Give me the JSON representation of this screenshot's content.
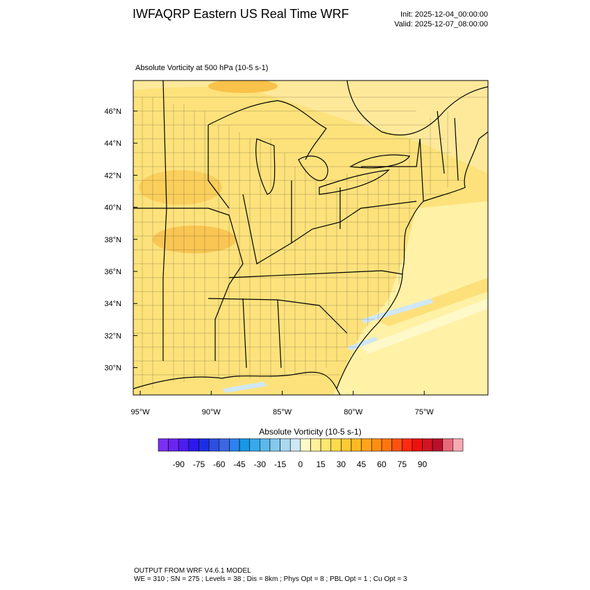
{
  "header": {
    "title": "IWFAQRP Eastern US Real Time WRF",
    "init": "Init: 2025-12-04_00:00:00",
    "valid": "Valid: 2025-12-07_08:00:00"
  },
  "map": {
    "subtitle": "Absolute Vorticity at 500 hPa   (10-5 s-1)",
    "lat_labels": [
      "46°N",
      "44°N",
      "42°N",
      "40°N",
      "38°N",
      "36°N",
      "34°N",
      "32°N",
      "30°N"
    ],
    "lon_labels": [
      "95°W",
      "90°W",
      "85°W",
      "80°W",
      "75°W"
    ]
  },
  "colorbar": {
    "title": "Absolute Vorticity  (10-5 s-1)",
    "colors": [
      "#7a2ff2",
      "#6a24ee",
      "#4d1cef",
      "#2d18ee",
      "#1c2ee4",
      "#2c4fe0",
      "#3b68e2",
      "#2c82ef",
      "#1598e6",
      "#36aae8",
      "#5cb8ea",
      "#86c8ec",
      "#aad8f0",
      "#cfe8f5",
      "#fffac8",
      "#fff19c",
      "#ffe770",
      "#ffda4c",
      "#ffcb33",
      "#ffba22",
      "#ffa41a",
      "#ff8e12",
      "#ff7510",
      "#ff5212",
      "#ff2a10",
      "#ee1010",
      "#d01424",
      "#b8102c",
      "#e86a7a",
      "#f8aab2"
    ],
    "labels": [
      -90,
      -75,
      -60,
      -45,
      -30,
      -15,
      0,
      15,
      30,
      45,
      60,
      75,
      90
    ]
  },
  "footer": {
    "line1": "OUTPUT FROM WRF V4.6.1 MODEL",
    "line2": "WE = 310 ; SN = 275 ; Levels = 38 ; Dis = 8km ; Phys Opt = 8 ; PBL Opt = 1 ; Cu Opt = 3"
  }
}
